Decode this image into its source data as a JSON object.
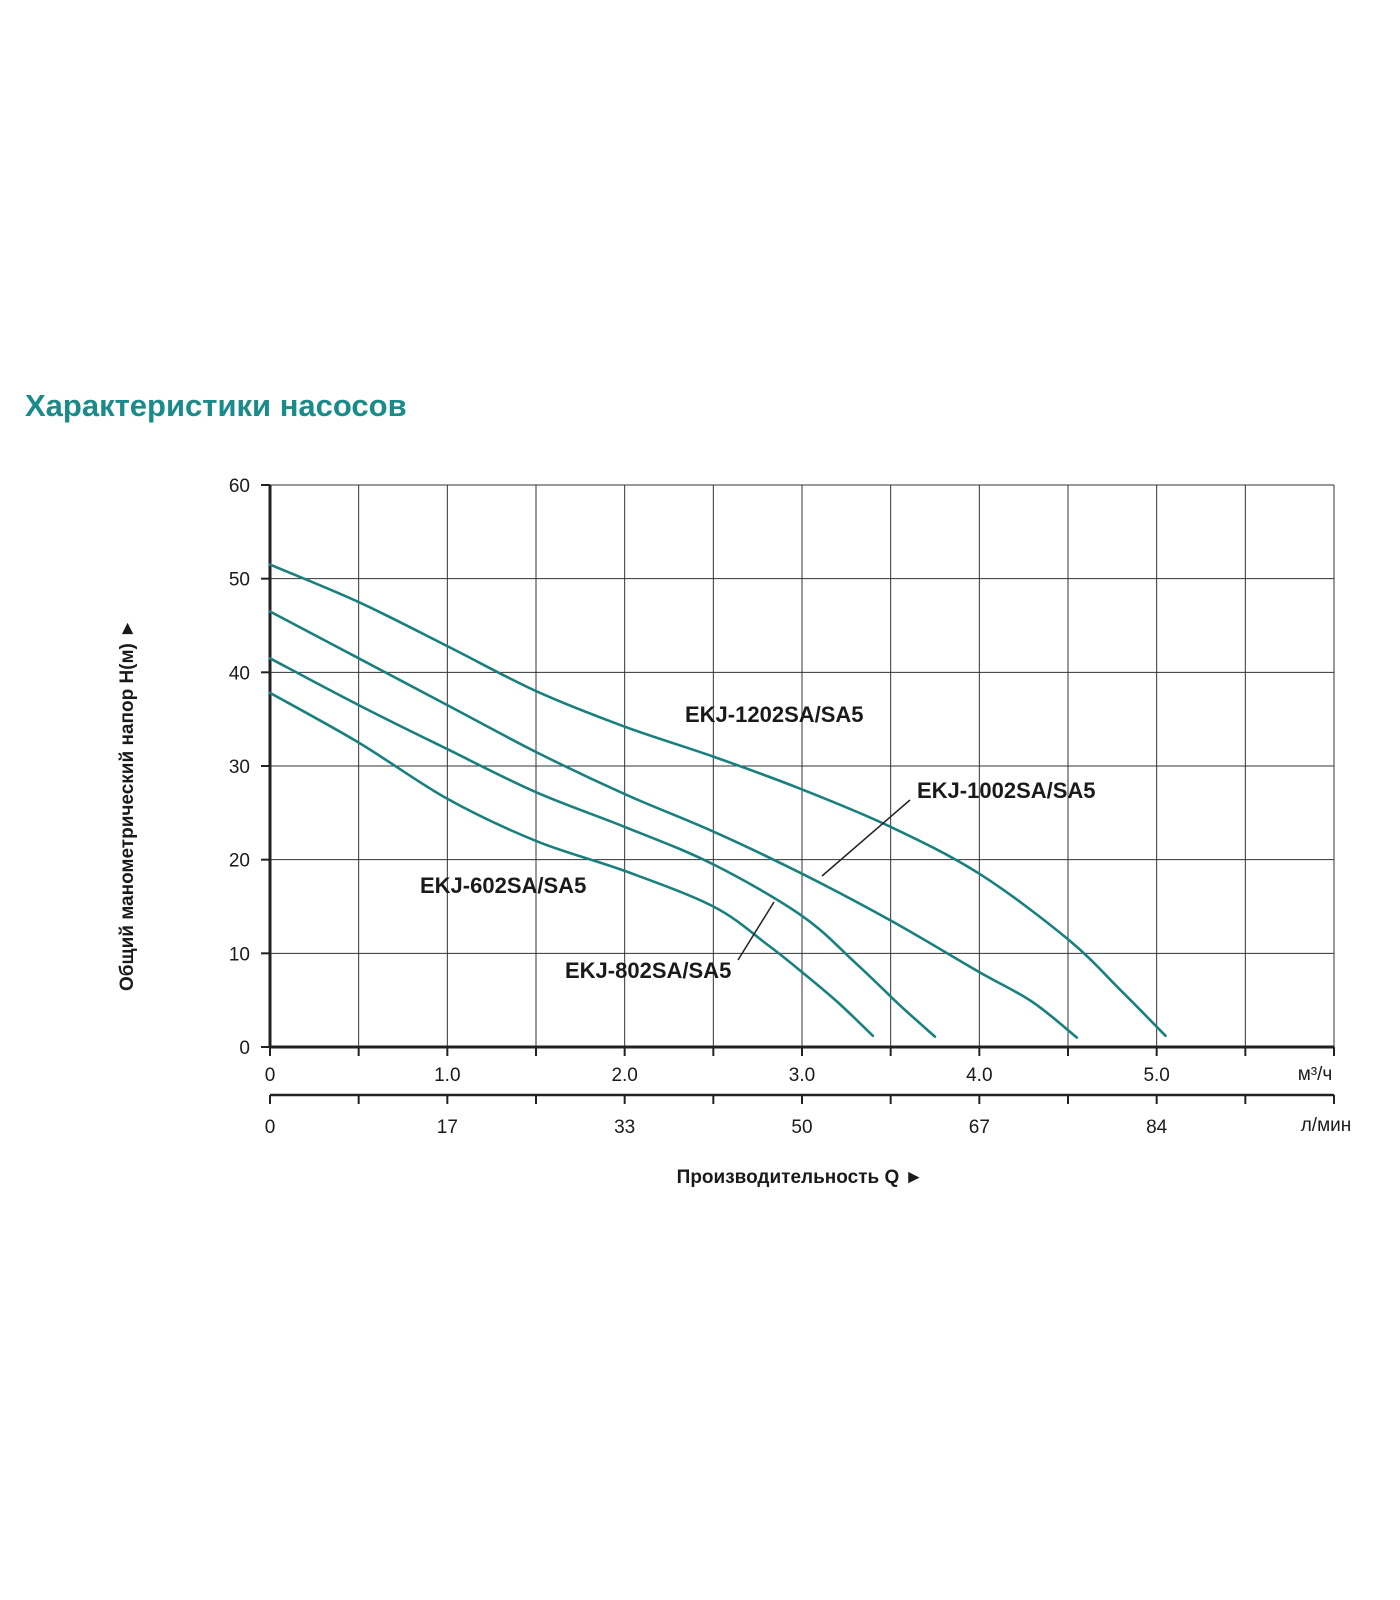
{
  "page": {
    "title": "Характеристики насосов"
  },
  "colors": {
    "title": "#1a8a8a",
    "curve": "#1a7f7f",
    "grid": "#333333",
    "axis": "#222222",
    "text": "#1a1a1a"
  },
  "chart_data": {
    "type": "line",
    "title": "",
    "ylabel": "Общий манометрический напор H(м) ►",
    "xlabel": "Производительность Q ►",
    "ylim": [
      0,
      60
    ],
    "xlim": [
      0,
      6.0
    ],
    "yticks": [
      0,
      10,
      20,
      30,
      40,
      50,
      60
    ],
    "grid": true,
    "x_axis_primary": {
      "unit": "м³/ч",
      "ticks": [
        0,
        1.0,
        2.0,
        3.0,
        4.0,
        5.0
      ],
      "tick_labels": [
        "0",
        "1.0",
        "2.0",
        "3.0",
        "4.0",
        "5.0"
      ]
    },
    "x_axis_secondary": {
      "unit": "л/мин",
      "tick_positions": [
        0,
        1.0,
        2.0,
        3.0,
        4.0,
        5.0
      ],
      "tick_labels": [
        "0",
        "17",
        "33",
        "50",
        "67",
        "84"
      ]
    },
    "series": [
      {
        "name": "EKJ-1202SA/SA5",
        "points": [
          [
            0,
            51.5
          ],
          [
            0.5,
            47.5
          ],
          [
            1.0,
            42.8
          ],
          [
            1.5,
            38
          ],
          [
            2.0,
            34.2
          ],
          [
            2.5,
            31
          ],
          [
            3.0,
            27.5
          ],
          [
            3.5,
            23.5
          ],
          [
            4.0,
            18.5
          ],
          [
            4.5,
            11.5
          ],
          [
            4.8,
            6
          ],
          [
            5.05,
            1.2
          ]
        ]
      },
      {
        "name": "EKJ-1002SA/SA5",
        "points": [
          [
            0,
            46.5
          ],
          [
            0.5,
            41.5
          ],
          [
            1.0,
            36.5
          ],
          [
            1.5,
            31.5
          ],
          [
            2.0,
            27
          ],
          [
            2.5,
            23
          ],
          [
            3.0,
            18.5
          ],
          [
            3.5,
            13.5
          ],
          [
            4.0,
            8
          ],
          [
            4.3,
            4.8
          ],
          [
            4.55,
            1.0
          ]
        ]
      },
      {
        "name": "EKJ-802SA/SA5",
        "points": [
          [
            0,
            41.5
          ],
          [
            0.5,
            36.5
          ],
          [
            1.0,
            31.8
          ],
          [
            1.5,
            27.2
          ],
          [
            2.0,
            23.5
          ],
          [
            2.5,
            19.5
          ],
          [
            3.0,
            14
          ],
          [
            3.3,
            9
          ],
          [
            3.55,
            4.5
          ],
          [
            3.75,
            1.1
          ]
        ]
      },
      {
        "name": "EKJ-602SA/SA5",
        "points": [
          [
            0,
            37.8
          ],
          [
            0.5,
            32.5
          ],
          [
            1.0,
            26.5
          ],
          [
            1.5,
            22
          ],
          [
            2.0,
            18.8
          ],
          [
            2.5,
            15
          ],
          [
            2.8,
            11
          ],
          [
            3.0,
            8
          ],
          [
            3.2,
            4.8
          ],
          [
            3.4,
            1.2
          ]
        ]
      }
    ]
  }
}
